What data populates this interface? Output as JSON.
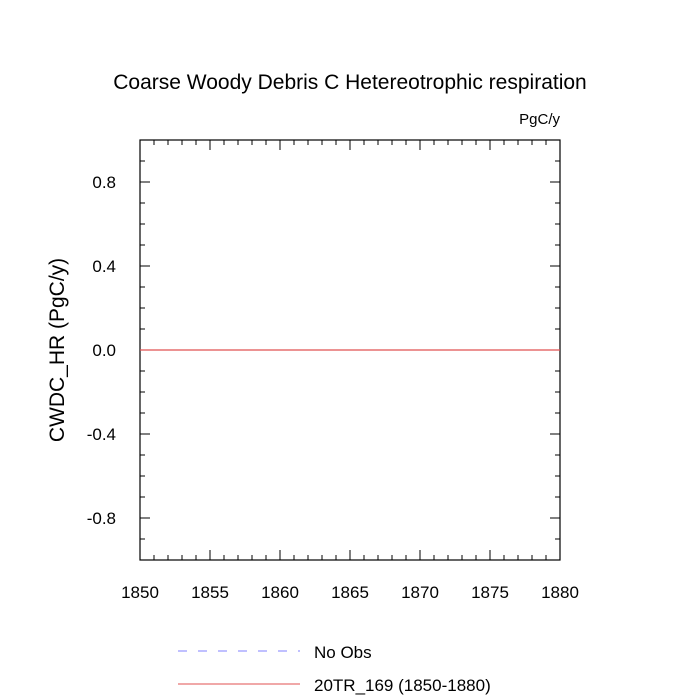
{
  "chart_data": {
    "type": "line",
    "title": "Coarse Woody Debris C Hetereotrophic respiration",
    "units_label": "PgC/y",
    "ylabel": "CWDC_HR  (PgC/y)",
    "xlabel": "",
    "xlim": [
      1850,
      1880
    ],
    "ylim": [
      -1.0,
      1.0
    ],
    "x_major_ticks": [
      1850,
      1855,
      1860,
      1865,
      1870,
      1875,
      1880
    ],
    "x_minor_step": 1,
    "y_major_ticks": [
      -0.8,
      -0.4,
      0.0,
      0.4,
      0.8
    ],
    "y_tick_labels": [
      "-0.8",
      "-0.4",
      "0.0",
      "0.4",
      "0.8"
    ],
    "y_minor_step": 0.1,
    "grid": false,
    "legend_position": "bottom",
    "series": [
      {
        "name": "No Obs",
        "color": "#8080ff",
        "dash": "dashed",
        "x": [],
        "y": []
      },
      {
        "name": "20TR_169 (1850-1880)",
        "color": "#e05050",
        "dash": "solid",
        "x": [
          1850,
          1880
        ],
        "y": [
          0.0,
          0.0
        ]
      }
    ]
  }
}
